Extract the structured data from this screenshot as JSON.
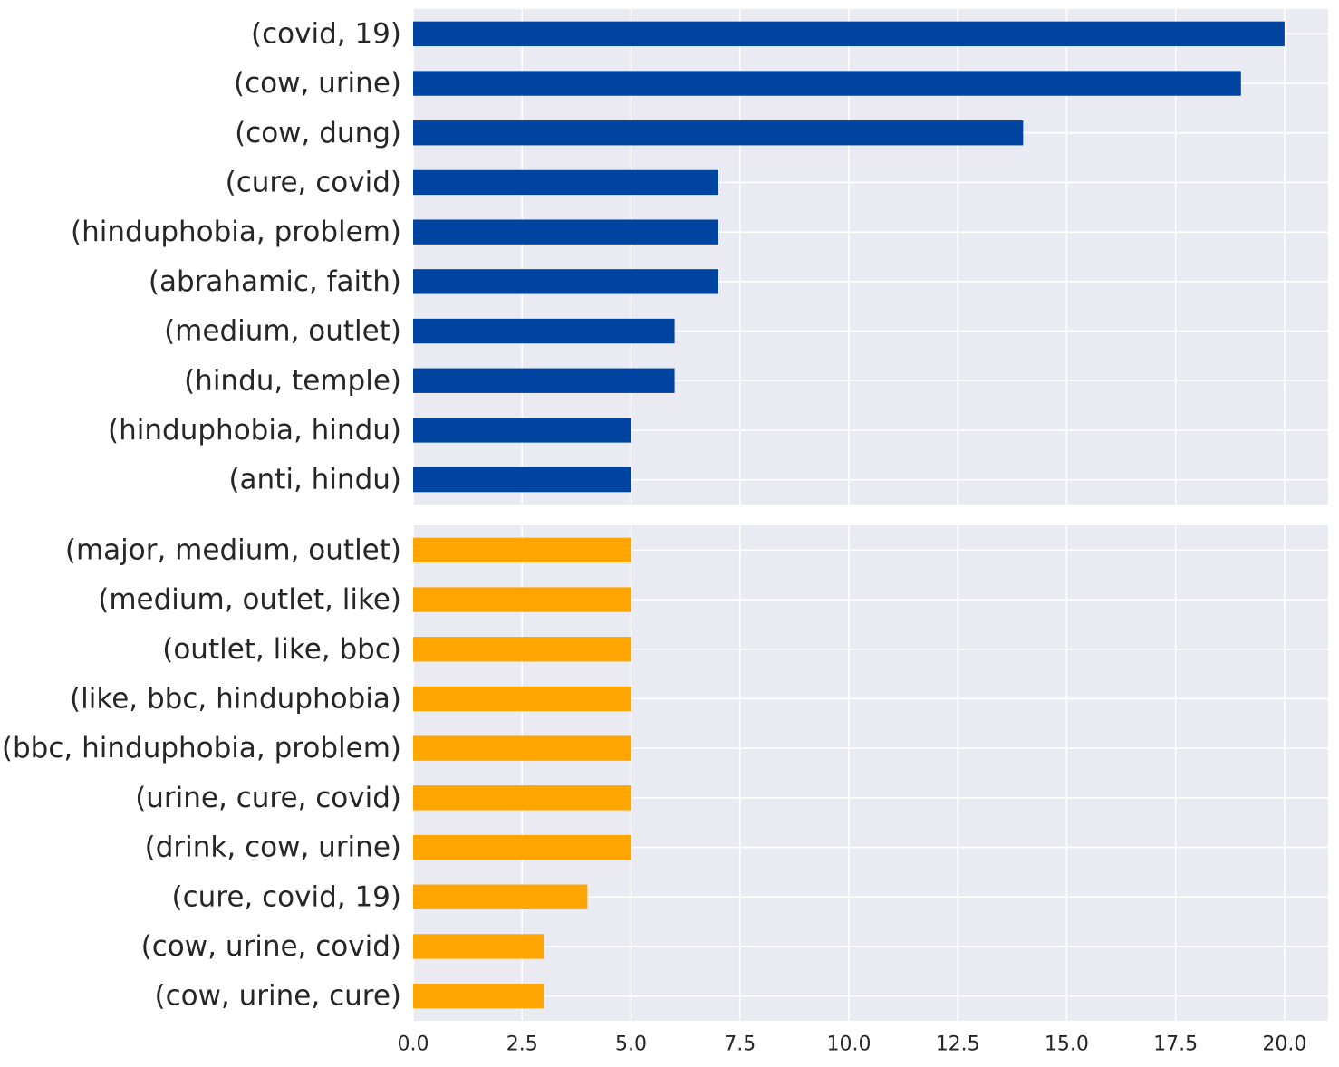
{
  "chart_data": [
    {
      "type": "bar",
      "orientation": "horizontal",
      "categories": [
        "(covid, 19)",
        "(cow, urine)",
        "(cow, dung)",
        "(cure, covid)",
        "(hinduphobia, problem)",
        "(abrahamic, faith)",
        "(medium, outlet)",
        "(hindu, temple)",
        "(hinduphobia, hindu)",
        "(anti, hindu)"
      ],
      "values": [
        20,
        19,
        14,
        7,
        7,
        7,
        6,
        6,
        5,
        5
      ],
      "color": "#0044a2",
      "xlim": [
        0,
        21
      ],
      "grid": true
    },
    {
      "type": "bar",
      "orientation": "horizontal",
      "categories": [
        "(major, medium, outlet)",
        "(medium, outlet, like)",
        "(outlet, like, bbc)",
        "(like, bbc, hinduphobia)",
        "(bbc, hinduphobia, problem)",
        "(urine, cure, covid)",
        "(drink, cow, urine)",
        "(cure, covid, 19)",
        "(cow, urine, covid)",
        "(cow, urine, cure)"
      ],
      "values": [
        5,
        5,
        5,
        5,
        5,
        5,
        5,
        4,
        3,
        3
      ],
      "color": "#ffa500",
      "xlim": [
        0,
        21
      ],
      "grid": true
    }
  ],
  "x_ticks": [
    "0.0",
    "2.5",
    "5.0",
    "7.5",
    "10.0",
    "12.5",
    "15.0",
    "17.5",
    "20.0"
  ],
  "x_tick_values": [
    0,
    2.5,
    5,
    7.5,
    10,
    12.5,
    15,
    17.5,
    20
  ],
  "style": {
    "panel_background": "#eaeaf2",
    "grid_color": "#ffffff",
    "text_color": "#262626"
  }
}
